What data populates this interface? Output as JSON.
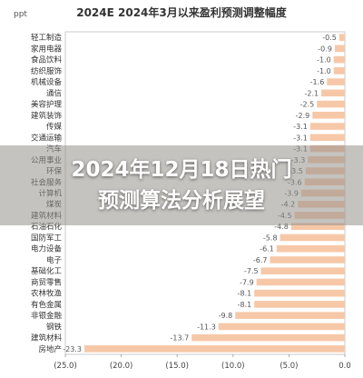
{
  "chart_data": {
    "type": "bar",
    "title": "2024E 2024年3月以来盈利预测调整幅度",
    "unit_label": "ppt",
    "categories": [
      "轻工制造",
      "家用电器",
      "食品饮料",
      "纺织服饰",
      "机械设备",
      "通信",
      "美容护理",
      "建筑装饰",
      "传媒",
      "交通运输",
      "汽车",
      "公用事业",
      "环保",
      "社会服务",
      "计算机",
      "煤炭",
      "建筑材料",
      "石油石化",
      "国防军工",
      "电力设备",
      "电子",
      "基础化工",
      "商贸零售",
      "农林牧渔",
      "有色金属",
      "非银金融",
      "钢铁",
      "建筑材料",
      "房地产"
    ],
    "values": [
      -0.5,
      -0.9,
      -1.0,
      -1.0,
      -1.6,
      -2.1,
      -2.5,
      -2.9,
      -3.1,
      -3.1,
      -3.1,
      -3.3,
      -3.5,
      -3.6,
      -3.9,
      -4.2,
      -4.5,
      -4.8,
      -5.8,
      -6.1,
      -6.7,
      -7.5,
      -7.9,
      -8.1,
      -8.1,
      -9.8,
      -11.3,
      -13.7,
      -23.3
    ],
    "xlim": [
      -25,
      0
    ],
    "xticks": [
      "(25.0)",
      "(20.0)",
      "(15.0)",
      "(10.0)",
      "(5.0)",
      "0.0"
    ],
    "xtick_values": [
      -25,
      -20,
      -15,
      -10,
      -5,
      0
    ],
    "bar_color": "#f6c8a8",
    "grid": false
  },
  "overlay": {
    "headline_line1": "2024年12月18日热门",
    "headline_line2": "预测算法分析展望"
  }
}
